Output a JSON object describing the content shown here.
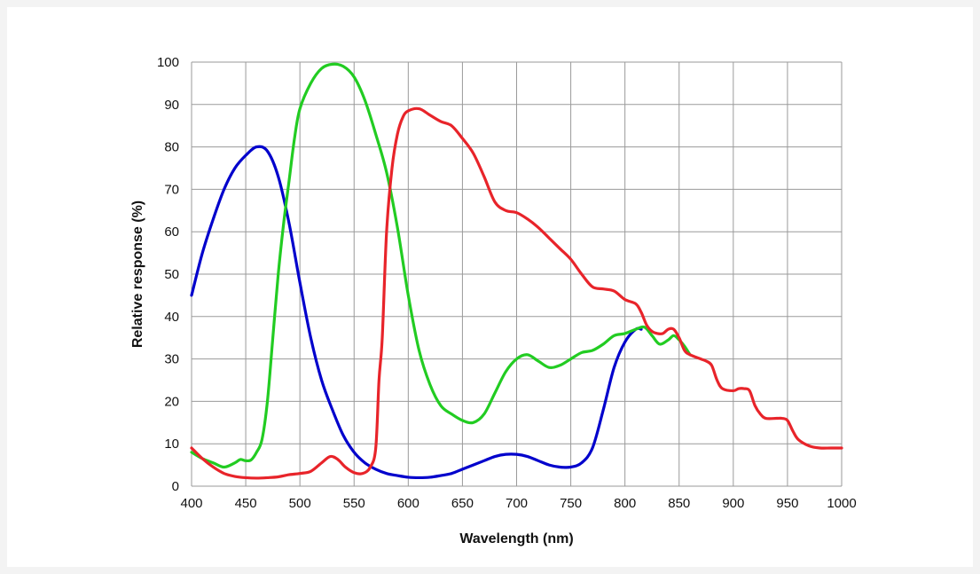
{
  "chart_data": {
    "type": "line",
    "xlabel": "Wavelength (nm)",
    "ylabel": "Relative response (%)",
    "xlim": [
      400,
      1000
    ],
    "ylim": [
      0,
      100
    ],
    "x_ticks": [
      400,
      450,
      500,
      550,
      600,
      650,
      700,
      750,
      800,
      850,
      900,
      950,
      1000
    ],
    "y_ticks": [
      0,
      10,
      20,
      30,
      40,
      50,
      60,
      70,
      80,
      90,
      100
    ],
    "grid": true,
    "legend": "none",
    "series": [
      {
        "color": "#0000cc",
        "points": [
          [
            400,
            45
          ],
          [
            410,
            55
          ],
          [
            420,
            63
          ],
          [
            430,
            70
          ],
          [
            440,
            75
          ],
          [
            450,
            78
          ],
          [
            460,
            80
          ],
          [
            470,
            79
          ],
          [
            480,
            73
          ],
          [
            490,
            62
          ],
          [
            500,
            48
          ],
          [
            510,
            35
          ],
          [
            520,
            25
          ],
          [
            530,
            18
          ],
          [
            540,
            12
          ],
          [
            550,
            8
          ],
          [
            560,
            5.5
          ],
          [
            570,
            4
          ],
          [
            580,
            3
          ],
          [
            590,
            2.5
          ],
          [
            600,
            2.1
          ],
          [
            610,
            2
          ],
          [
            620,
            2.1
          ],
          [
            630,
            2.5
          ],
          [
            640,
            3
          ],
          [
            650,
            4
          ],
          [
            660,
            5
          ],
          [
            670,
            6
          ],
          [
            680,
            7
          ],
          [
            690,
            7.5
          ],
          [
            700,
            7.5
          ],
          [
            710,
            7
          ],
          [
            720,
            6
          ],
          [
            730,
            5
          ],
          [
            740,
            4.5
          ],
          [
            750,
            4.5
          ],
          [
            760,
            5.5
          ],
          [
            770,
            9
          ],
          [
            780,
            18
          ],
          [
            790,
            28
          ],
          [
            800,
            34
          ],
          [
            810,
            37
          ],
          [
            815,
            37
          ]
        ]
      },
      {
        "color": "#22cc22",
        "points": [
          [
            400,
            8
          ],
          [
            410,
            6.5
          ],
          [
            420,
            5.5
          ],
          [
            430,
            4.5
          ],
          [
            440,
            5.5
          ],
          [
            445,
            6.3
          ],
          [
            450,
            6
          ],
          [
            455,
            6.2
          ],
          [
            460,
            8
          ],
          [
            465,
            11
          ],
          [
            470,
            20
          ],
          [
            475,
            35
          ],
          [
            480,
            50
          ],
          [
            485,
            62
          ],
          [
            490,
            72
          ],
          [
            495,
            82
          ],
          [
            500,
            89
          ],
          [
            510,
            95
          ],
          [
            520,
            98.5
          ],
          [
            530,
            99.5
          ],
          [
            540,
            99
          ],
          [
            550,
            96.5
          ],
          [
            560,
            91
          ],
          [
            570,
            83
          ],
          [
            580,
            74
          ],
          [
            590,
            61
          ],
          [
            600,
            45
          ],
          [
            610,
            32
          ],
          [
            620,
            24
          ],
          [
            630,
            19
          ],
          [
            640,
            17
          ],
          [
            650,
            15.5
          ],
          [
            660,
            15
          ],
          [
            670,
            17
          ],
          [
            680,
            22
          ],
          [
            690,
            27
          ],
          [
            700,
            30
          ],
          [
            710,
            31
          ],
          [
            720,
            29.5
          ],
          [
            730,
            28
          ],
          [
            740,
            28.5
          ],
          [
            750,
            30
          ],
          [
            760,
            31.5
          ],
          [
            770,
            32
          ],
          [
            780,
            33.5
          ],
          [
            790,
            35.5
          ],
          [
            800,
            36
          ],
          [
            810,
            37
          ],
          [
            818,
            37.5
          ],
          [
            825,
            35.5
          ],
          [
            832,
            33.5
          ],
          [
            840,
            34.5
          ],
          [
            845,
            35.5
          ],
          [
            850,
            34.5
          ],
          [
            855,
            33
          ],
          [
            860,
            31
          ]
        ]
      },
      {
        "color": "#e8242a",
        "points": [
          [
            400,
            9
          ],
          [
            410,
            6.5
          ],
          [
            420,
            4.5
          ],
          [
            430,
            3
          ],
          [
            440,
            2.3
          ],
          [
            450,
            2
          ],
          [
            460,
            1.9
          ],
          [
            470,
            2
          ],
          [
            480,
            2.2
          ],
          [
            490,
            2.7
          ],
          [
            500,
            3
          ],
          [
            510,
            3.5
          ],
          [
            520,
            5.5
          ],
          [
            528,
            7
          ],
          [
            535,
            6.3
          ],
          [
            542,
            4.5
          ],
          [
            550,
            3.2
          ],
          [
            558,
            3
          ],
          [
            565,
            4.5
          ],
          [
            570,
            9
          ],
          [
            573,
            25
          ],
          [
            576,
            35
          ],
          [
            580,
            60
          ],
          [
            585,
            75
          ],
          [
            590,
            83
          ],
          [
            595,
            87
          ],
          [
            600,
            88.5
          ],
          [
            610,
            89
          ],
          [
            620,
            87.5
          ],
          [
            630,
            86
          ],
          [
            640,
            85
          ],
          [
            650,
            82
          ],
          [
            660,
            78.5
          ],
          [
            670,
            73
          ],
          [
            680,
            67
          ],
          [
            690,
            65
          ],
          [
            700,
            64.5
          ],
          [
            710,
            63
          ],
          [
            720,
            61
          ],
          [
            730,
            58.5
          ],
          [
            740,
            56
          ],
          [
            750,
            53.5
          ],
          [
            760,
            50
          ],
          [
            770,
            47
          ],
          [
            780,
            46.5
          ],
          [
            790,
            46
          ],
          [
            800,
            44
          ],
          [
            810,
            43
          ],
          [
            815,
            41
          ],
          [
            820,
            38
          ],
          [
            825,
            36.5
          ],
          [
            830,
            36
          ],
          [
            835,
            36
          ],
          [
            840,
            37
          ],
          [
            845,
            37
          ],
          [
            850,
            35
          ],
          [
            855,
            32
          ],
          [
            860,
            31
          ],
          [
            870,
            30
          ],
          [
            875,
            29.5
          ],
          [
            880,
            28.5
          ],
          [
            885,
            25
          ],
          [
            890,
            23
          ],
          [
            900,
            22.5
          ],
          [
            905,
            23
          ],
          [
            910,
            23
          ],
          [
            915,
            22.5
          ],
          [
            920,
            19
          ],
          [
            925,
            17
          ],
          [
            930,
            16
          ],
          [
            940,
            16
          ],
          [
            945,
            16
          ],
          [
            950,
            15.5
          ],
          [
            955,
            13
          ],
          [
            960,
            11
          ],
          [
            970,
            9.5
          ],
          [
            980,
            9
          ],
          [
            990,
            9
          ],
          [
            1000,
            9
          ]
        ]
      }
    ]
  }
}
